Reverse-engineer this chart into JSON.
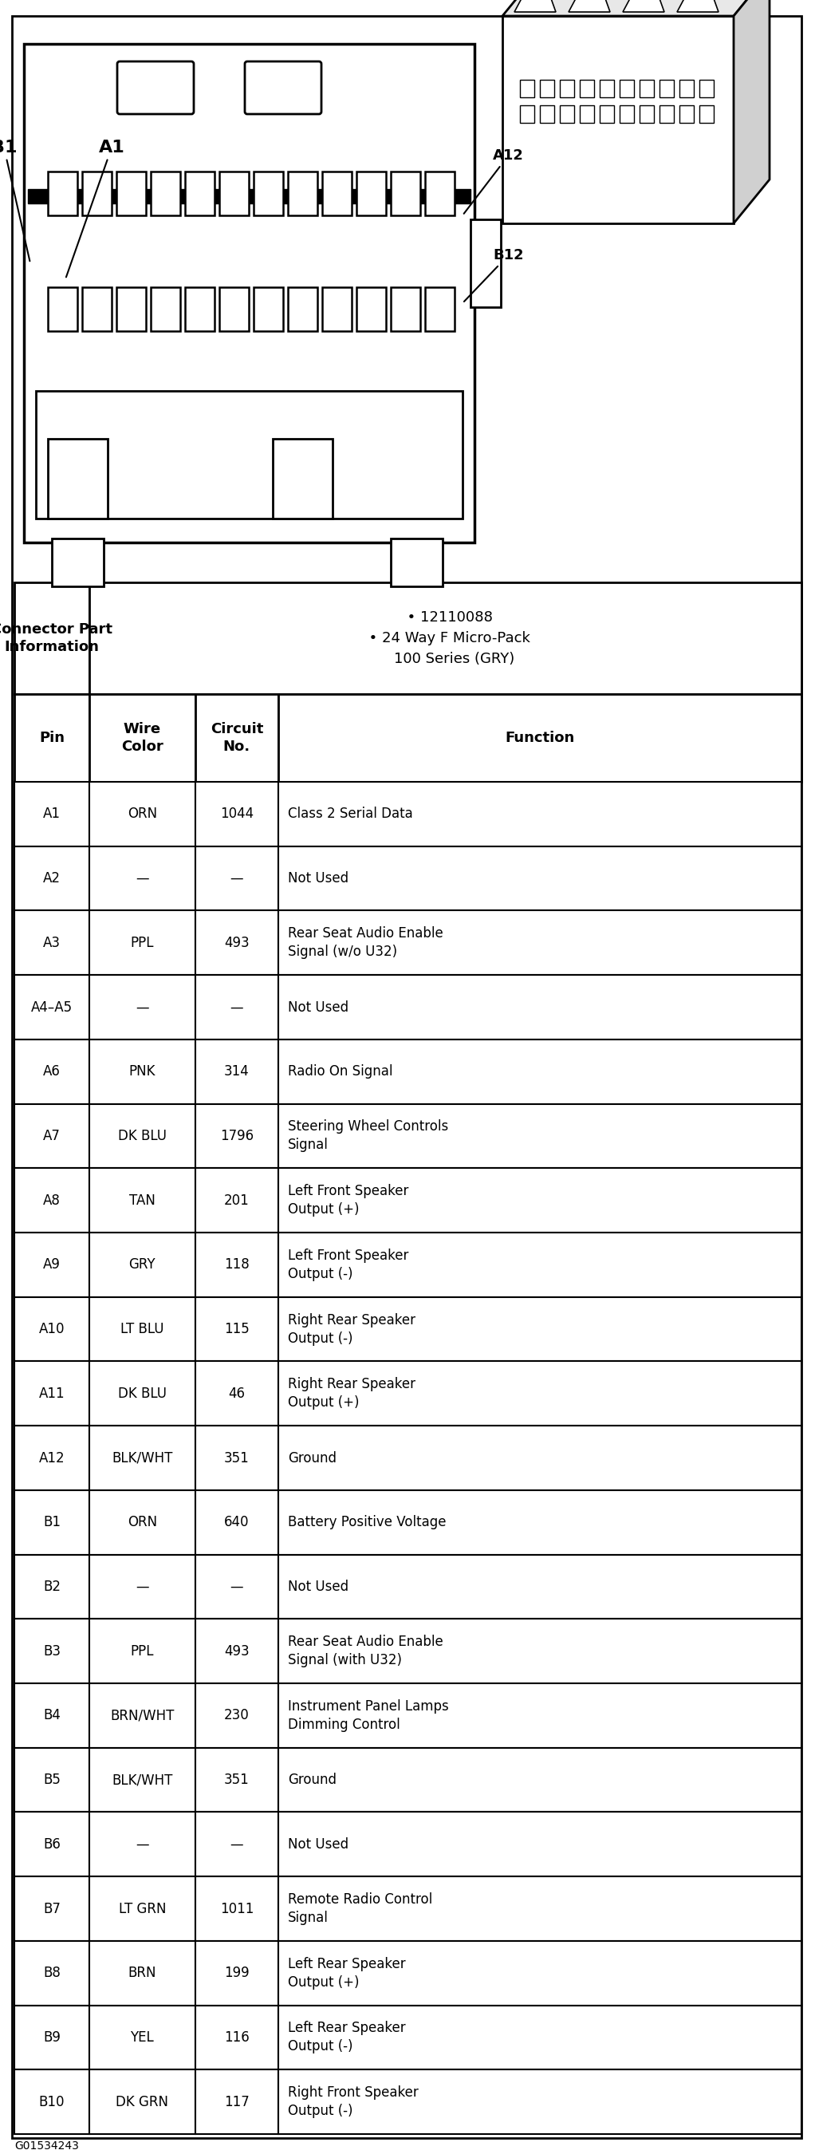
{
  "connector_info_left": "Connector Part\nInformation",
  "connector_info_right": "  • 12110088\n  • 24 Way F Micro-Pack\n    100 Series (GRY)",
  "col_headers": [
    "Pin",
    "Wire\nColor",
    "Circuit\nNo.",
    "Function"
  ],
  "rows": [
    [
      "A1",
      "ORN",
      "1044",
      "Class 2 Serial Data"
    ],
    [
      "A2",
      "—",
      "—",
      "Not Used"
    ],
    [
      "A3",
      "PPL",
      "493",
      "Rear Seat Audio Enable\nSignal (w/o U32)"
    ],
    [
      "A4–A5",
      "—",
      "—",
      "Not Used"
    ],
    [
      "A6",
      "PNK",
      "314",
      "Radio On Signal"
    ],
    [
      "A7",
      "DK BLU",
      "1796",
      "Steering Wheel Controls\nSignal"
    ],
    [
      "A8",
      "TAN",
      "201",
      "Left Front Speaker\nOutput (+)"
    ],
    [
      "A9",
      "GRY",
      "118",
      "Left Front Speaker\nOutput (-)"
    ],
    [
      "A10",
      "LT BLU",
      "115",
      "Right Rear Speaker\nOutput (-)"
    ],
    [
      "A11",
      "DK BLU",
      "46",
      "Right Rear Speaker\nOutput (+)"
    ],
    [
      "A12",
      "BLK/WHT",
      "351",
      "Ground"
    ],
    [
      "B1",
      "ORN",
      "640",
      "Battery Positive Voltage"
    ],
    [
      "B2",
      "—",
      "—",
      "Not Used"
    ],
    [
      "B3",
      "PPL",
      "493",
      "Rear Seat Audio Enable\nSignal (with U32)"
    ],
    [
      "B4",
      "BRN/WHT",
      "230",
      "Instrument Panel Lamps\nDimming Control"
    ],
    [
      "B5",
      "BLK/WHT",
      "351",
      "Ground"
    ],
    [
      "B6",
      "—",
      "—",
      "Not Used"
    ],
    [
      "B7",
      "LT GRN",
      "1011",
      "Remote Radio Control\nSignal"
    ],
    [
      "B8",
      "BRN",
      "199",
      "Left Rear Speaker\nOutput (+)"
    ],
    [
      "B9",
      "YEL",
      "116",
      "Left Rear Speaker\nOutput (-)"
    ],
    [
      "B10",
      "DK GRN",
      "117",
      "Right Front Speaker\nOutput (-)"
    ]
  ],
  "footer_text": "G01534243",
  "bg_color": "#ffffff"
}
